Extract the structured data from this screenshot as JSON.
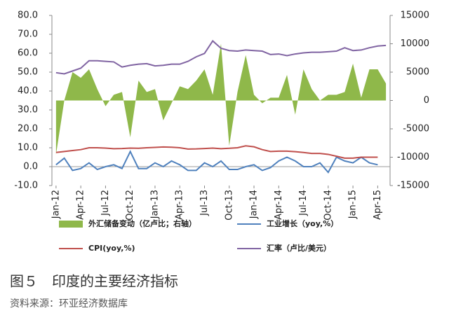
{
  "chart_data": {
    "type": "combo",
    "caption": "图５　印度的主要经济指标",
    "source": "资料来源：环亚经济数据库",
    "categories": [
      "Jan-12",
      null,
      null,
      "Apr-12",
      null,
      null,
      "Jul-12",
      null,
      null,
      "Oct-12",
      null,
      null,
      "Jan-13",
      null,
      null,
      "Apr-13",
      null,
      null,
      "Jul-13",
      null,
      null,
      "Oct-13",
      null,
      null,
      "Jan-14",
      null,
      null,
      "Apr-14",
      null,
      null,
      "Jul-14",
      null,
      null,
      "Oct-14",
      null,
      null,
      "Jan-15",
      null,
      null,
      "Apr-15",
      null
    ],
    "ylim": [
      -10,
      80
    ],
    "yticks": [
      {
        "value": -10,
        "label": "-10.0"
      },
      {
        "value": 0,
        "label": "0.0"
      },
      {
        "value": 10,
        "label": "10.0"
      },
      {
        "value": 20,
        "label": "20.0"
      },
      {
        "value": 30,
        "label": "30.0"
      },
      {
        "value": 40,
        "label": "40.0"
      },
      {
        "value": 50,
        "label": "50.0"
      },
      {
        "value": 60,
        "label": "60.0"
      },
      {
        "value": 70,
        "label": "70.0"
      },
      {
        "value": 80,
        "label": "80.0"
      }
    ],
    "y2lim": [
      -15000,
      15000
    ],
    "y2ticks": [
      -15000,
      -10000,
      -5000,
      0,
      5000,
      10000,
      15000
    ],
    "grid": false,
    "series": [
      {
        "name": "外汇储备变动（亿卢比；右轴）",
        "kind": "area",
        "axis": "y2",
        "color": "#8fb84a",
        "values": [
          -9500,
          0,
          5000,
          4000,
          5500,
          2000,
          -1000,
          1000,
          1500,
          -6500,
          3500,
          1500,
          2000,
          -3500,
          -500,
          2500,
          2000,
          3500,
          5500,
          1000,
          10000,
          -8000,
          1500,
          8000,
          1000,
          -500,
          500,
          500,
          4500,
          -2500,
          5500,
          2000,
          0,
          1000,
          1000,
          1500,
          6500,
          500,
          5500,
          5500,
          3000
        ]
      },
      {
        "name": "工业增长（yoy,%）",
        "kind": "line",
        "color": "#4f81bd",
        "values": [
          1,
          4.5,
          -2,
          -1,
          2,
          -1.5,
          0,
          1,
          -1,
          8,
          -1,
          -1,
          2,
          0,
          3,
          1,
          -2,
          -2,
          2,
          0,
          3,
          -1.5,
          -1.5,
          0,
          1,
          -2,
          -0.5,
          3,
          5,
          3,
          0,
          0,
          2,
          -3,
          5,
          3,
          2,
          5,
          2,
          1,
          null
        ]
      },
      {
        "name": "CPI(yoy,%)",
        "kind": "line",
        "color": "#c0504d",
        "values": [
          7.5,
          8,
          8.5,
          9,
          10,
          10,
          9.8,
          9.5,
          9.6,
          9.8,
          9.7,
          10,
          10.2,
          10.4,
          10.3,
          10,
          9.3,
          9.4,
          9.6,
          9.8,
          9.5,
          9.7,
          10,
          11,
          10.5,
          9,
          8,
          8.2,
          8.2,
          7.9,
          7.5,
          7,
          7,
          6.5,
          5.5,
          4.5,
          4.5,
          5,
          5,
          5,
          null
        ]
      },
      {
        "name": "汇率（卢比/美元）",
        "kind": "line",
        "axis": "y2",
        "color": "#8064a2",
        "values": [
          4900,
          4700,
          5200,
          5700,
          7000,
          7000,
          6900,
          6800,
          5900,
          6200,
          6400,
          6500,
          6100,
          6200,
          6400,
          6400,
          6900,
          7700,
          8300,
          10500,
          9200,
          8800,
          8700,
          8900,
          8800,
          8700,
          8100,
          8200,
          7900,
          8200,
          8400,
          8500,
          8500,
          8600,
          8700,
          9300,
          8800,
          8900,
          9300,
          9600,
          9700
        ]
      }
    ]
  }
}
